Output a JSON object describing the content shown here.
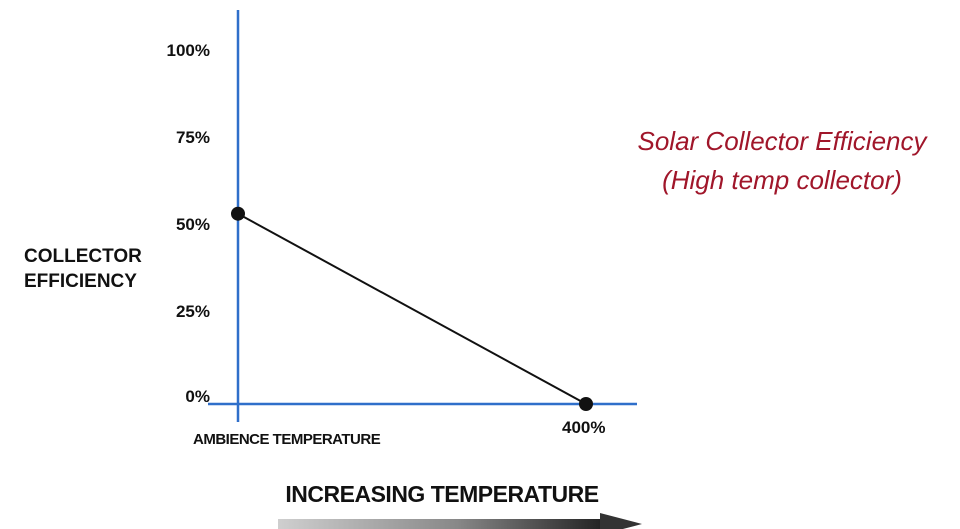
{
  "chart_data": {
    "type": "line",
    "title_lines": [
      "Solar Collector Efficiency",
      "(High temp collector)"
    ],
    "ylabel_lines": [
      "COLLECTOR",
      "EFFICIENCY"
    ],
    "xlabel": "INCREASING TEMPERATURE",
    "x_start_label": "AMBIENCE TEMPERATURE",
    "x_end_label": "400%",
    "y_ticks": [
      "100%",
      "75%",
      "50%",
      "25%",
      "0%"
    ],
    "y_tick_values": [
      100,
      75,
      50,
      25,
      0
    ],
    "ylim": [
      0,
      100
    ],
    "xlim": [
      0,
      400
    ],
    "series": [
      {
        "x": [
          0,
          400
        ],
        "y": [
          53,
          0
        ]
      }
    ],
    "grid": false,
    "colors": {
      "axis": "#2f6fca",
      "line": "#111111",
      "title": "#a0162a",
      "arrow": "#333333"
    }
  }
}
